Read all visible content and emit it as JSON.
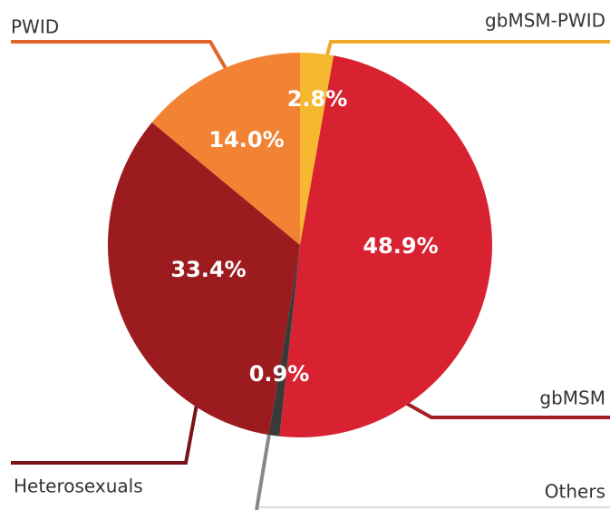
{
  "chart_data": {
    "type": "pie",
    "categories": [
      "gbMSM-PWID",
      "gbMSM",
      "Others",
      "Heterosexuals",
      "PWID"
    ],
    "values": [
      2.8,
      48.9,
      0.9,
      33.4,
      14.0
    ],
    "value_labels": [
      "2.8%",
      "48.9%",
      "0.9%",
      "33.4%",
      "14.0%"
    ],
    "colors": [
      "#f5b82e",
      "#d92231",
      "#3a3a3a",
      "#9b1b1f",
      "#f28334"
    ]
  }
}
